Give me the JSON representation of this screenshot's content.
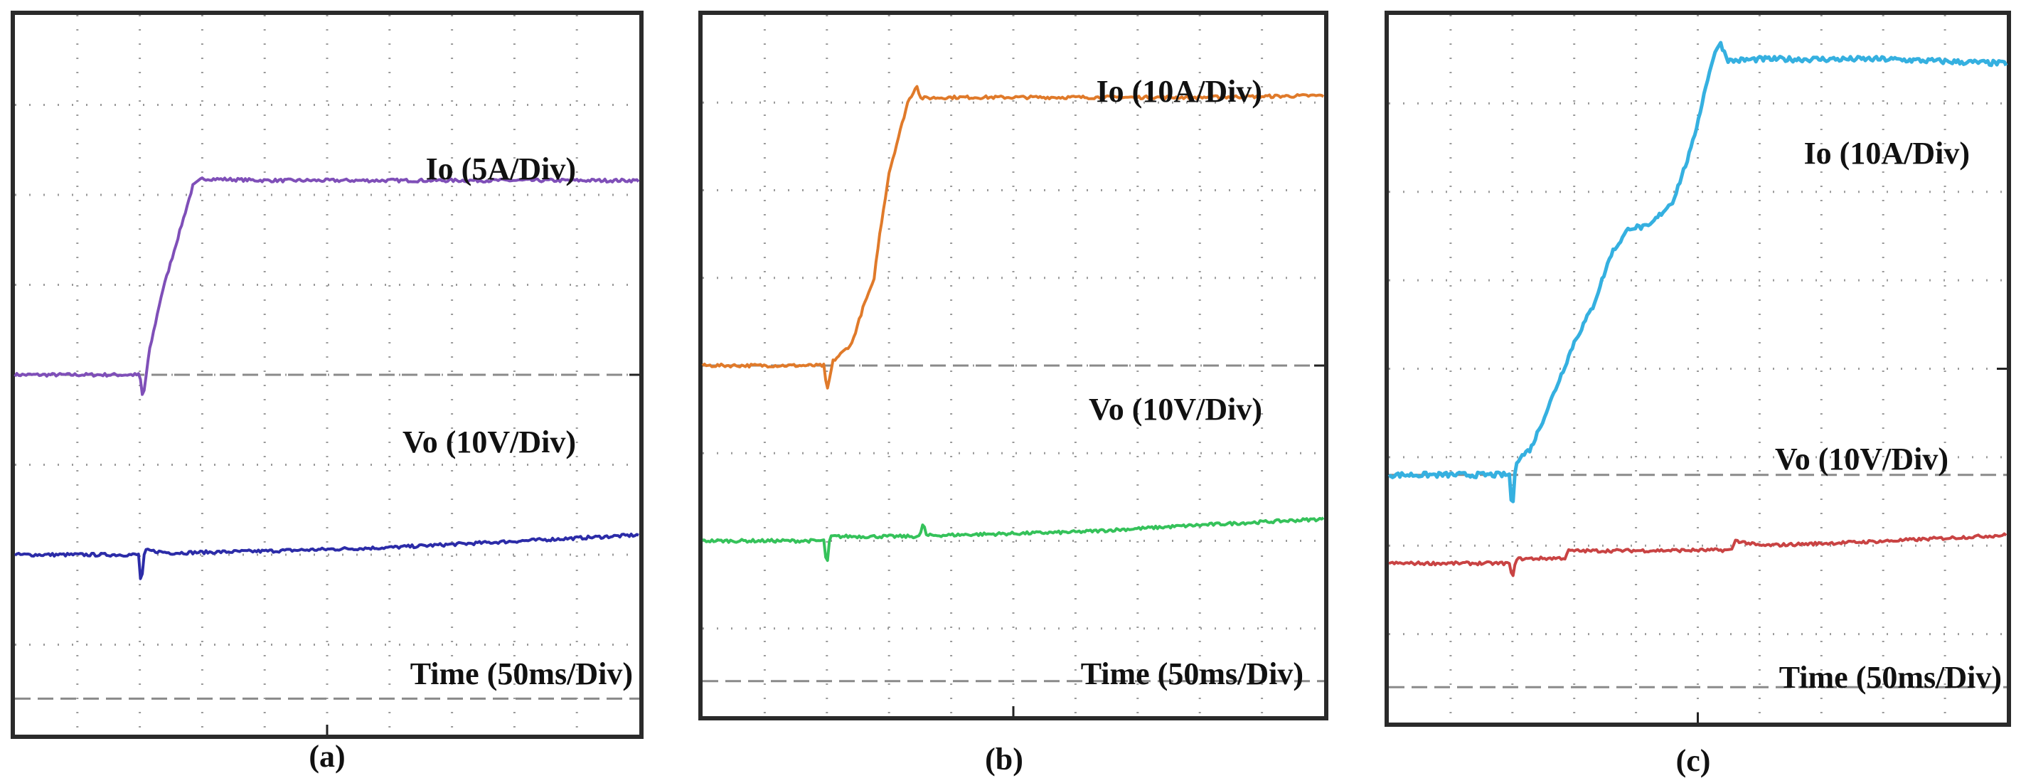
{
  "figure": {
    "captions": [
      "(a)",
      "(b)",
      "(c)"
    ]
  },
  "chart_data": [
    {
      "type": "line",
      "panel": "(a)",
      "title": "",
      "divisions": {
        "x": 10,
        "y": 8
      },
      "xlabel": "Time (50ms/Div)",
      "xlim": [
        0,
        10
      ],
      "ylim": [
        0,
        8
      ],
      "grid": true,
      "series": [
        {
          "name": "Io (5A/Div)",
          "color": "#7f4fb8",
          "x": [
            0,
            2.0,
            2.05,
            2.15,
            2.35,
            2.6,
            2.85,
            3.0,
            4.0,
            6.0,
            8.0,
            10.0
          ],
          "y": [
            4.0,
            4.0,
            3.72,
            4.25,
            4.9,
            5.5,
            6.1,
            6.18,
            6.16,
            6.16,
            6.16,
            6.16
          ]
        },
        {
          "name": "Vo (10V/Div)",
          "color": "#2c2ca8",
          "x": [
            0,
            1.98,
            2.02,
            2.08,
            2.5,
            4.0,
            6.0,
            8.0,
            10.0
          ],
          "y": [
            2.0,
            2.0,
            1.65,
            2.05,
            2.02,
            2.04,
            2.08,
            2.15,
            2.22
          ]
        }
      ],
      "reference_levels": [
        4.0,
        0.0
      ]
    },
    {
      "type": "line",
      "panel": "(b)",
      "title": "",
      "divisions": {
        "x": 10,
        "y": 8
      },
      "xlabel": "Time (50ms/Div)",
      "xlim": [
        0,
        10
      ],
      "ylim": [
        0,
        8
      ],
      "grid": true,
      "series": [
        {
          "name": "Io (10A/Div)",
          "color": "#e07a2a",
          "x": [
            0,
            1.95,
            2.0,
            2.1,
            2.4,
            2.6,
            2.75,
            2.85,
            3.0,
            3.15,
            3.3,
            3.45,
            3.5,
            4.0,
            6.0,
            8.0,
            10.0
          ],
          "y": [
            4.0,
            4.0,
            3.7,
            4.05,
            4.25,
            4.7,
            4.95,
            5.5,
            6.2,
            6.6,
            7.0,
            7.2,
            7.05,
            7.06,
            7.06,
            7.06,
            7.08
          ]
        },
        {
          "name": "Vo (10V/Div)",
          "color": "#35c25a",
          "x": [
            0,
            1.95,
            2.0,
            2.05,
            3.5,
            3.55,
            3.6,
            6.0,
            8.0,
            10.0
          ],
          "y": [
            2.0,
            2.0,
            1.7,
            2.05,
            2.05,
            2.22,
            2.06,
            2.1,
            2.18,
            2.25
          ]
        }
      ],
      "reference_levels": [
        4.0,
        0.0
      ]
    },
    {
      "type": "line",
      "panel": "(c)",
      "title": "",
      "divisions": {
        "x": 10,
        "y": 8
      },
      "xlabel": "Time (50ms/Div)",
      "xlim": [
        0,
        10
      ],
      "ylim": [
        0,
        8
      ],
      "grid": true,
      "series": [
        {
          "name": "Io (10A/Div)",
          "color": "#35b0e0",
          "x": [
            0,
            1.95,
            2.0,
            2.05,
            2.3,
            2.6,
            3.0,
            3.3,
            3.6,
            3.9,
            4.2,
            4.6,
            4.9,
            5.2,
            5.35,
            5.5,
            6.0,
            7.0,
            8.0,
            10.0
          ],
          "y": [
            2.8,
            2.8,
            2.35,
            2.95,
            3.1,
            3.6,
            4.3,
            4.7,
            5.3,
            5.6,
            5.6,
            5.9,
            6.5,
            7.4,
            7.7,
            7.48,
            7.5,
            7.5,
            7.5,
            7.45
          ]
        },
        {
          "name": "Vo (10V/Div)",
          "color": "#c94343",
          "x": [
            0,
            1.95,
            2.0,
            2.05,
            2.85,
            2.9,
            5.55,
            5.6,
            6.0,
            8.0,
            10.0
          ],
          "y": [
            1.8,
            1.8,
            1.6,
            1.85,
            1.86,
            1.94,
            1.95,
            2.06,
            2.0,
            2.05,
            2.12
          ]
        }
      ],
      "reference_levels": [
        2.8,
        0.0
      ]
    }
  ]
}
